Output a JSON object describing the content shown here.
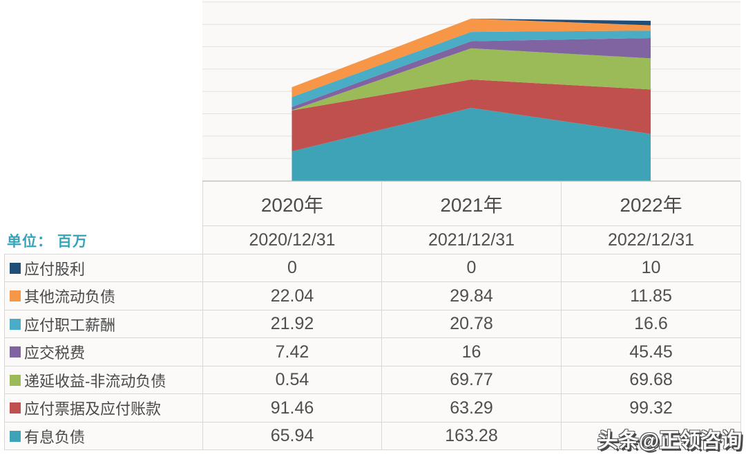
{
  "unit_label": "单位： 百万",
  "watermark": "头条@正领咨询",
  "chart_data": {
    "type": "area",
    "stacked": true,
    "title": "",
    "xlabel": "",
    "ylabel": "",
    "categories": [
      "2020年",
      "2021年",
      "2022年"
    ],
    "ylim": [
      0,
      400
    ],
    "ytick_step": 50,
    "grid": true,
    "legend_position": "table-rows-left",
    "series": [
      {
        "name": "应付股利",
        "color": "#1f4e79",
        "values": [
          0,
          0,
          10
        ]
      },
      {
        "name": "其他流动负债",
        "color": "#f79646",
        "values": [
          22.04,
          29.84,
          11.85
        ]
      },
      {
        "name": "应付职工薪酬",
        "color": "#4bacc6",
        "values": [
          21.92,
          20.78,
          16.6
        ]
      },
      {
        "name": "应交税费",
        "color": "#8064a2",
        "values": [
          7.42,
          16,
          45.45
        ]
      },
      {
        "name": "递延收益-非流动负债",
        "color": "#9bbb59",
        "values": [
          0.54,
          69.77,
          69.68
        ]
      },
      {
        "name": "应付票据及应付账款",
        "color": "#c0504d",
        "values": [
          91.46,
          63.29,
          99.32
        ]
      },
      {
        "name": "有息负债",
        "color": "#3fa3b8",
        "values": [
          65.94,
          163.28,
          105
        ]
      }
    ]
  },
  "table": {
    "columns": [
      "2020/12/31",
      "2021/12/31",
      "2022/12/31"
    ],
    "rows": [
      {
        "label": "应付股利",
        "color": "#1f4e79",
        "values": [
          "0",
          "0",
          "10"
        ]
      },
      {
        "label": "其他流动负债",
        "color": "#f79646",
        "values": [
          "22.04",
          "29.84",
          "11.85"
        ]
      },
      {
        "label": "应付职工薪酬",
        "color": "#4bacc6",
        "values": [
          "21.92",
          "20.78",
          "16.6"
        ]
      },
      {
        "label": "应交税费",
        "color": "#8064a2",
        "values": [
          "7.42",
          "16",
          "45.45"
        ]
      },
      {
        "label": "递延收益-非流动负债",
        "color": "#9bbb59",
        "values": [
          "0.54",
          "69.77",
          "69.68"
        ]
      },
      {
        "label": "应付票据及应付账款",
        "color": "#c0504d",
        "values": [
          "91.46",
          "63.29",
          "99.32"
        ]
      },
      {
        "label": "有息负债",
        "color": "#3fa3b8",
        "values": [
          "65.94",
          "163.28",
          ""
        ]
      }
    ]
  }
}
